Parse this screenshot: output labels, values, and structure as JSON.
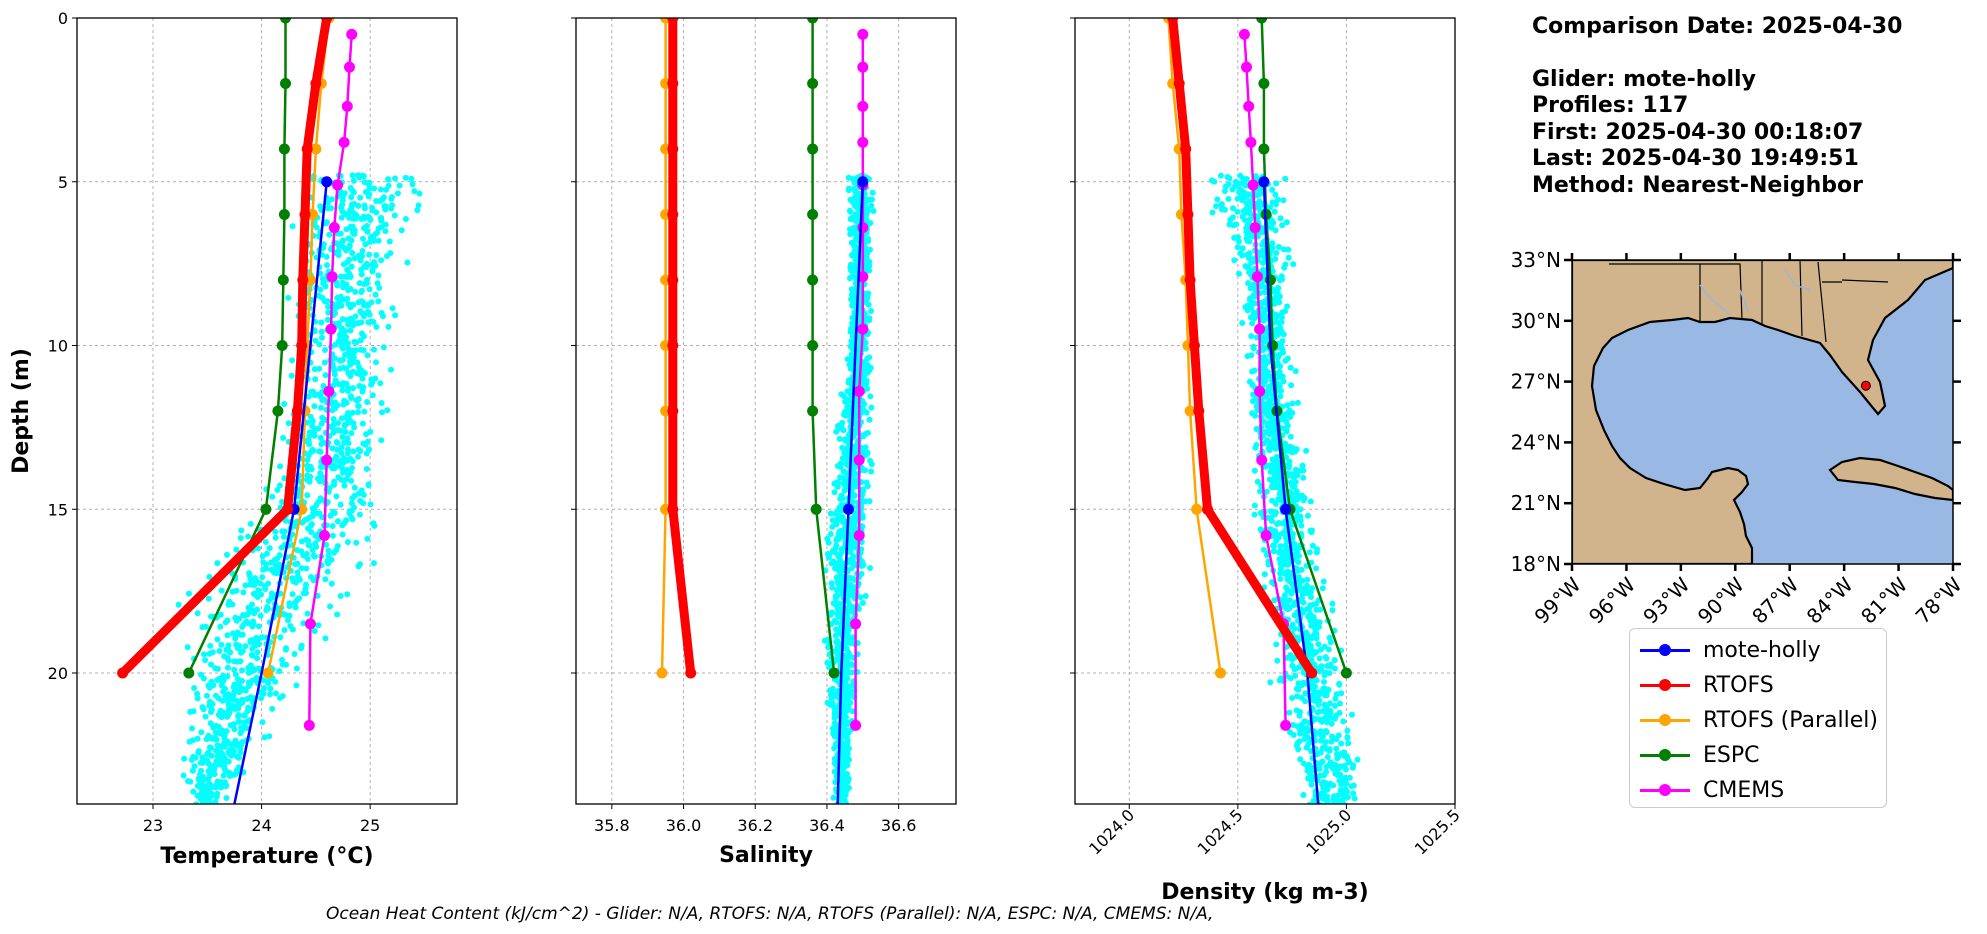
{
  "info": {
    "comparison": "Comparison Date: 2025-04-30",
    "glider": "Glider: mote-holly",
    "profiles": "Profiles: 117",
    "first": "First: 2025-04-30 00:18:07",
    "last": "Last: 2025-04-30 19:49:51",
    "method": "Method: Nearest-Neighbor"
  },
  "footer": "Ocean Heat Content (kJ/cm^2) - Glider: N/A,  RTOFS: N/A,  RTOFS (Parallel): N/A,  ESPC: N/A,  CMEMS: N/A,",
  "legend": [
    {
      "name": "mote-holly",
      "color": "#0000ff"
    },
    {
      "name": "RTOFS",
      "color": "#ff0000"
    },
    {
      "name": "RTOFS (Parallel)",
      "color": "#ffa500"
    },
    {
      "name": "ESPC",
      "color": "#008000"
    },
    {
      "name": "CMEMS",
      "color": "#ff00ff"
    }
  ],
  "chart_data": [
    {
      "type": "line",
      "xlabel": "Temperature (°C)",
      "ylabel": "Depth (m)",
      "xlim": [
        22.3,
        25.8
      ],
      "ylim": [
        24,
        0
      ],
      "xticks": [
        23,
        24,
        25
      ],
      "yticks": [
        0,
        5,
        10,
        15,
        20
      ],
      "grid": true,
      "glider_scatter_range": [
        {
          "depth": 5,
          "min": 24.55,
          "max": 25.3
        },
        {
          "depth": 8,
          "min": 24.45,
          "max": 25.1
        },
        {
          "depth": 11,
          "min": 24.4,
          "max": 25.0
        },
        {
          "depth": 14,
          "min": 24.3,
          "max": 24.9
        },
        {
          "depth": 16,
          "min": 23.9,
          "max": 24.8
        },
        {
          "depth": 18,
          "min": 23.5,
          "max": 24.5
        },
        {
          "depth": 20,
          "min": 23.45,
          "max": 24.2
        },
        {
          "depth": 22,
          "min": 23.4,
          "max": 23.9
        },
        {
          "depth": 24,
          "min": 23.4,
          "max": 23.6
        }
      ],
      "series": [
        {
          "name": "mote-holly",
          "color": "#0000ff",
          "points": [
            [
              24.6,
              5
            ],
            [
              24.45,
              10
            ],
            [
              24.3,
              15
            ],
            [
              24.0,
              20
            ],
            [
              23.75,
              24
            ]
          ],
          "marker_depths": [
            5,
            15
          ]
        },
        {
          "name": "RTOFS",
          "color": "#ff0000",
          "points": [
            [
              24.6,
              0
            ],
            [
              24.5,
              2
            ],
            [
              24.42,
              4
            ],
            [
              24.4,
              6
            ],
            [
              24.38,
              8
            ],
            [
              24.37,
              10
            ],
            [
              24.33,
              12
            ],
            [
              24.24,
              15
            ],
            [
              22.72,
              20
            ]
          ]
        },
        {
          "name": "RTOFS (Parallel)",
          "color": "#ffa500",
          "points": [
            [
              24.62,
              0
            ],
            [
              24.55,
              2
            ],
            [
              24.5,
              4
            ],
            [
              24.47,
              6
            ],
            [
              24.45,
              8
            ],
            [
              24.42,
              10
            ],
            [
              24.4,
              12
            ],
            [
              24.37,
              15
            ],
            [
              24.06,
              20
            ]
          ]
        },
        {
          "name": "ESPC",
          "color": "#008000",
          "points": [
            [
              24.22,
              0
            ],
            [
              24.22,
              2
            ],
            [
              24.21,
              4
            ],
            [
              24.21,
              6
            ],
            [
              24.2,
              8
            ],
            [
              24.19,
              10
            ],
            [
              24.15,
              12
            ],
            [
              24.04,
              15
            ],
            [
              23.33,
              20
            ]
          ]
        },
        {
          "name": "CMEMS",
          "color": "#ff00ff",
          "points": [
            [
              24.83,
              0.5
            ],
            [
              24.81,
              1.5
            ],
            [
              24.79,
              2.7
            ],
            [
              24.76,
              3.8
            ],
            [
              24.7,
              5.1
            ],
            [
              24.67,
              6.4
            ],
            [
              24.65,
              7.9
            ],
            [
              24.64,
              9.5
            ],
            [
              24.62,
              11.4
            ],
            [
              24.6,
              13.5
            ],
            [
              24.58,
              15.8
            ],
            [
              24.45,
              18.5
            ],
            [
              24.44,
              21.6
            ]
          ]
        }
      ]
    },
    {
      "type": "line",
      "xlabel": "Salinity",
      "xlim": [
        35.7,
        36.76
      ],
      "ylim": [
        24,
        0
      ],
      "xticks": [
        35.8,
        36.0,
        36.2,
        36.4,
        36.6
      ],
      "yticks": [
        0,
        5,
        10,
        15,
        20
      ],
      "grid": true,
      "glider_scatter_range": [
        {
          "depth": 5,
          "min": 36.47,
          "max": 36.52
        },
        {
          "depth": 10,
          "min": 36.47,
          "max": 36.51
        },
        {
          "depth": 13,
          "min": 36.44,
          "max": 36.51
        },
        {
          "depth": 16,
          "min": 36.42,
          "max": 36.5
        },
        {
          "depth": 19,
          "min": 36.41,
          "max": 36.48
        },
        {
          "depth": 22,
          "min": 36.42,
          "max": 36.46
        },
        {
          "depth": 24,
          "min": 36.43,
          "max": 36.46
        }
      ],
      "series": [
        {
          "name": "mote-holly",
          "color": "#0000ff",
          "points": [
            [
              36.5,
              5
            ],
            [
              36.48,
              10
            ],
            [
              36.46,
              15
            ],
            [
              36.44,
              20
            ],
            [
              36.43,
              24
            ]
          ],
          "marker_depths": [
            5,
            15
          ]
        },
        {
          "name": "RTOFS",
          "color": "#ff0000",
          "points": [
            [
              35.97,
              0
            ],
            [
              35.97,
              2
            ],
            [
              35.97,
              4
            ],
            [
              35.97,
              6
            ],
            [
              35.97,
              8
            ],
            [
              35.97,
              10
            ],
            [
              35.97,
              12
            ],
            [
              35.97,
              15
            ],
            [
              36.02,
              20
            ]
          ]
        },
        {
          "name": "RTOFS (Parallel)",
          "color": "#ffa500",
          "points": [
            [
              35.95,
              0
            ],
            [
              35.95,
              2
            ],
            [
              35.95,
              4
            ],
            [
              35.95,
              6
            ],
            [
              35.95,
              8
            ],
            [
              35.95,
              10
            ],
            [
              35.95,
              12
            ],
            [
              35.95,
              15
            ],
            [
              35.94,
              20
            ]
          ]
        },
        {
          "name": "ESPC",
          "color": "#008000",
          "points": [
            [
              36.36,
              0
            ],
            [
              36.36,
              2
            ],
            [
              36.36,
              4
            ],
            [
              36.36,
              6
            ],
            [
              36.36,
              8
            ],
            [
              36.36,
              10
            ],
            [
              36.36,
              12
            ],
            [
              36.37,
              15
            ],
            [
              36.42,
              20
            ]
          ]
        },
        {
          "name": "CMEMS",
          "color": "#ff00ff",
          "points": [
            [
              36.5,
              0.5
            ],
            [
              36.5,
              1.5
            ],
            [
              36.5,
              2.7
            ],
            [
              36.5,
              3.8
            ],
            [
              36.5,
              5.1
            ],
            [
              36.5,
              6.4
            ],
            [
              36.5,
              7.9
            ],
            [
              36.5,
              9.5
            ],
            [
              36.49,
              11.4
            ],
            [
              36.49,
              13.5
            ],
            [
              36.49,
              15.8
            ],
            [
              36.48,
              18.5
            ],
            [
              36.48,
              21.6
            ]
          ]
        }
      ]
    },
    {
      "type": "line",
      "xlabel": "Density (kg m-3)",
      "xlim": [
        1023.75,
        1025.5
      ],
      "ylim": [
        24,
        0
      ],
      "xticks": [
        1024.0,
        1024.5,
        1025.0,
        1025.5
      ],
      "yticks": [
        0,
        5,
        10,
        15,
        20
      ],
      "grid": true,
      "glider_scatter_range": [
        {
          "depth": 5,
          "min": 1024.4,
          "max": 1024.65
        },
        {
          "depth": 8,
          "min": 1024.55,
          "max": 1024.7
        },
        {
          "depth": 11,
          "min": 1024.58,
          "max": 1024.72
        },
        {
          "depth": 14,
          "min": 1024.62,
          "max": 1024.78
        },
        {
          "depth": 17,
          "min": 1024.65,
          "max": 1024.85
        },
        {
          "depth": 20,
          "min": 1024.72,
          "max": 1024.95
        },
        {
          "depth": 22,
          "min": 1024.78,
          "max": 1025.0
        },
        {
          "depth": 24,
          "min": 1024.85,
          "max": 1025.02
        }
      ],
      "series": [
        {
          "name": "mote-holly",
          "color": "#0000ff",
          "points": [
            [
              1024.62,
              5
            ],
            [
              1024.65,
              10
            ],
            [
              1024.72,
              15
            ],
            [
              1024.82,
              20
            ],
            [
              1024.87,
              24
            ]
          ],
          "marker_depths": [
            5,
            15
          ]
        },
        {
          "name": "RTOFS",
          "color": "#ff0000",
          "points": [
            [
              1024.2,
              0
            ],
            [
              1024.23,
              2
            ],
            [
              1024.26,
              4
            ],
            [
              1024.27,
              6
            ],
            [
              1024.28,
              8
            ],
            [
              1024.3,
              10
            ],
            [
              1024.32,
              12
            ],
            [
              1024.36,
              15
            ],
            [
              1024.84,
              20
            ]
          ]
        },
        {
          "name": "RTOFS (Parallel)",
          "color": "#ffa500",
          "points": [
            [
              1024.18,
              0
            ],
            [
              1024.2,
              2
            ],
            [
              1024.23,
              4
            ],
            [
              1024.24,
              6
            ],
            [
              1024.26,
              8
            ],
            [
              1024.27,
              10
            ],
            [
              1024.28,
              12
            ],
            [
              1024.31,
              15
            ],
            [
              1024.42,
              20
            ]
          ]
        },
        {
          "name": "ESPC",
          "color": "#008000",
          "points": [
            [
              1024.61,
              0
            ],
            [
              1024.62,
              2
            ],
            [
              1024.62,
              4
            ],
            [
              1024.63,
              6
            ],
            [
              1024.65,
              8
            ],
            [
              1024.66,
              10
            ],
            [
              1024.68,
              12
            ],
            [
              1024.74,
              15
            ],
            [
              1025.0,
              20
            ]
          ]
        },
        {
          "name": "CMEMS",
          "color": "#ff00ff",
          "points": [
            [
              1024.53,
              0.5
            ],
            [
              1024.54,
              1.5
            ],
            [
              1024.55,
              2.7
            ],
            [
              1024.56,
              3.8
            ],
            [
              1024.57,
              5.1
            ],
            [
              1024.58,
              6.4
            ],
            [
              1024.59,
              7.9
            ],
            [
              1024.6,
              9.5
            ],
            [
              1024.6,
              11.4
            ],
            [
              1024.61,
              13.5
            ],
            [
              1024.63,
              15.8
            ],
            [
              1024.71,
              18.5
            ],
            [
              1024.72,
              21.6
            ]
          ]
        }
      ]
    }
  ],
  "map": {
    "lat_ticks": [
      "33°N",
      "30°N",
      "27°N",
      "24°N",
      "21°N",
      "18°N"
    ],
    "lon_ticks": [
      "99°W",
      "96°W",
      "93°W",
      "90°W",
      "87°W",
      "84°W",
      "81°W",
      "78°W"
    ],
    "extent": {
      "lon": [
        -99,
        -78
      ],
      "lat": [
        18,
        33
      ]
    },
    "glider_position": {
      "lon": -82.8,
      "lat": 26.8
    },
    "land_color": "#d2b48c",
    "water_color": "#99b8e3"
  }
}
